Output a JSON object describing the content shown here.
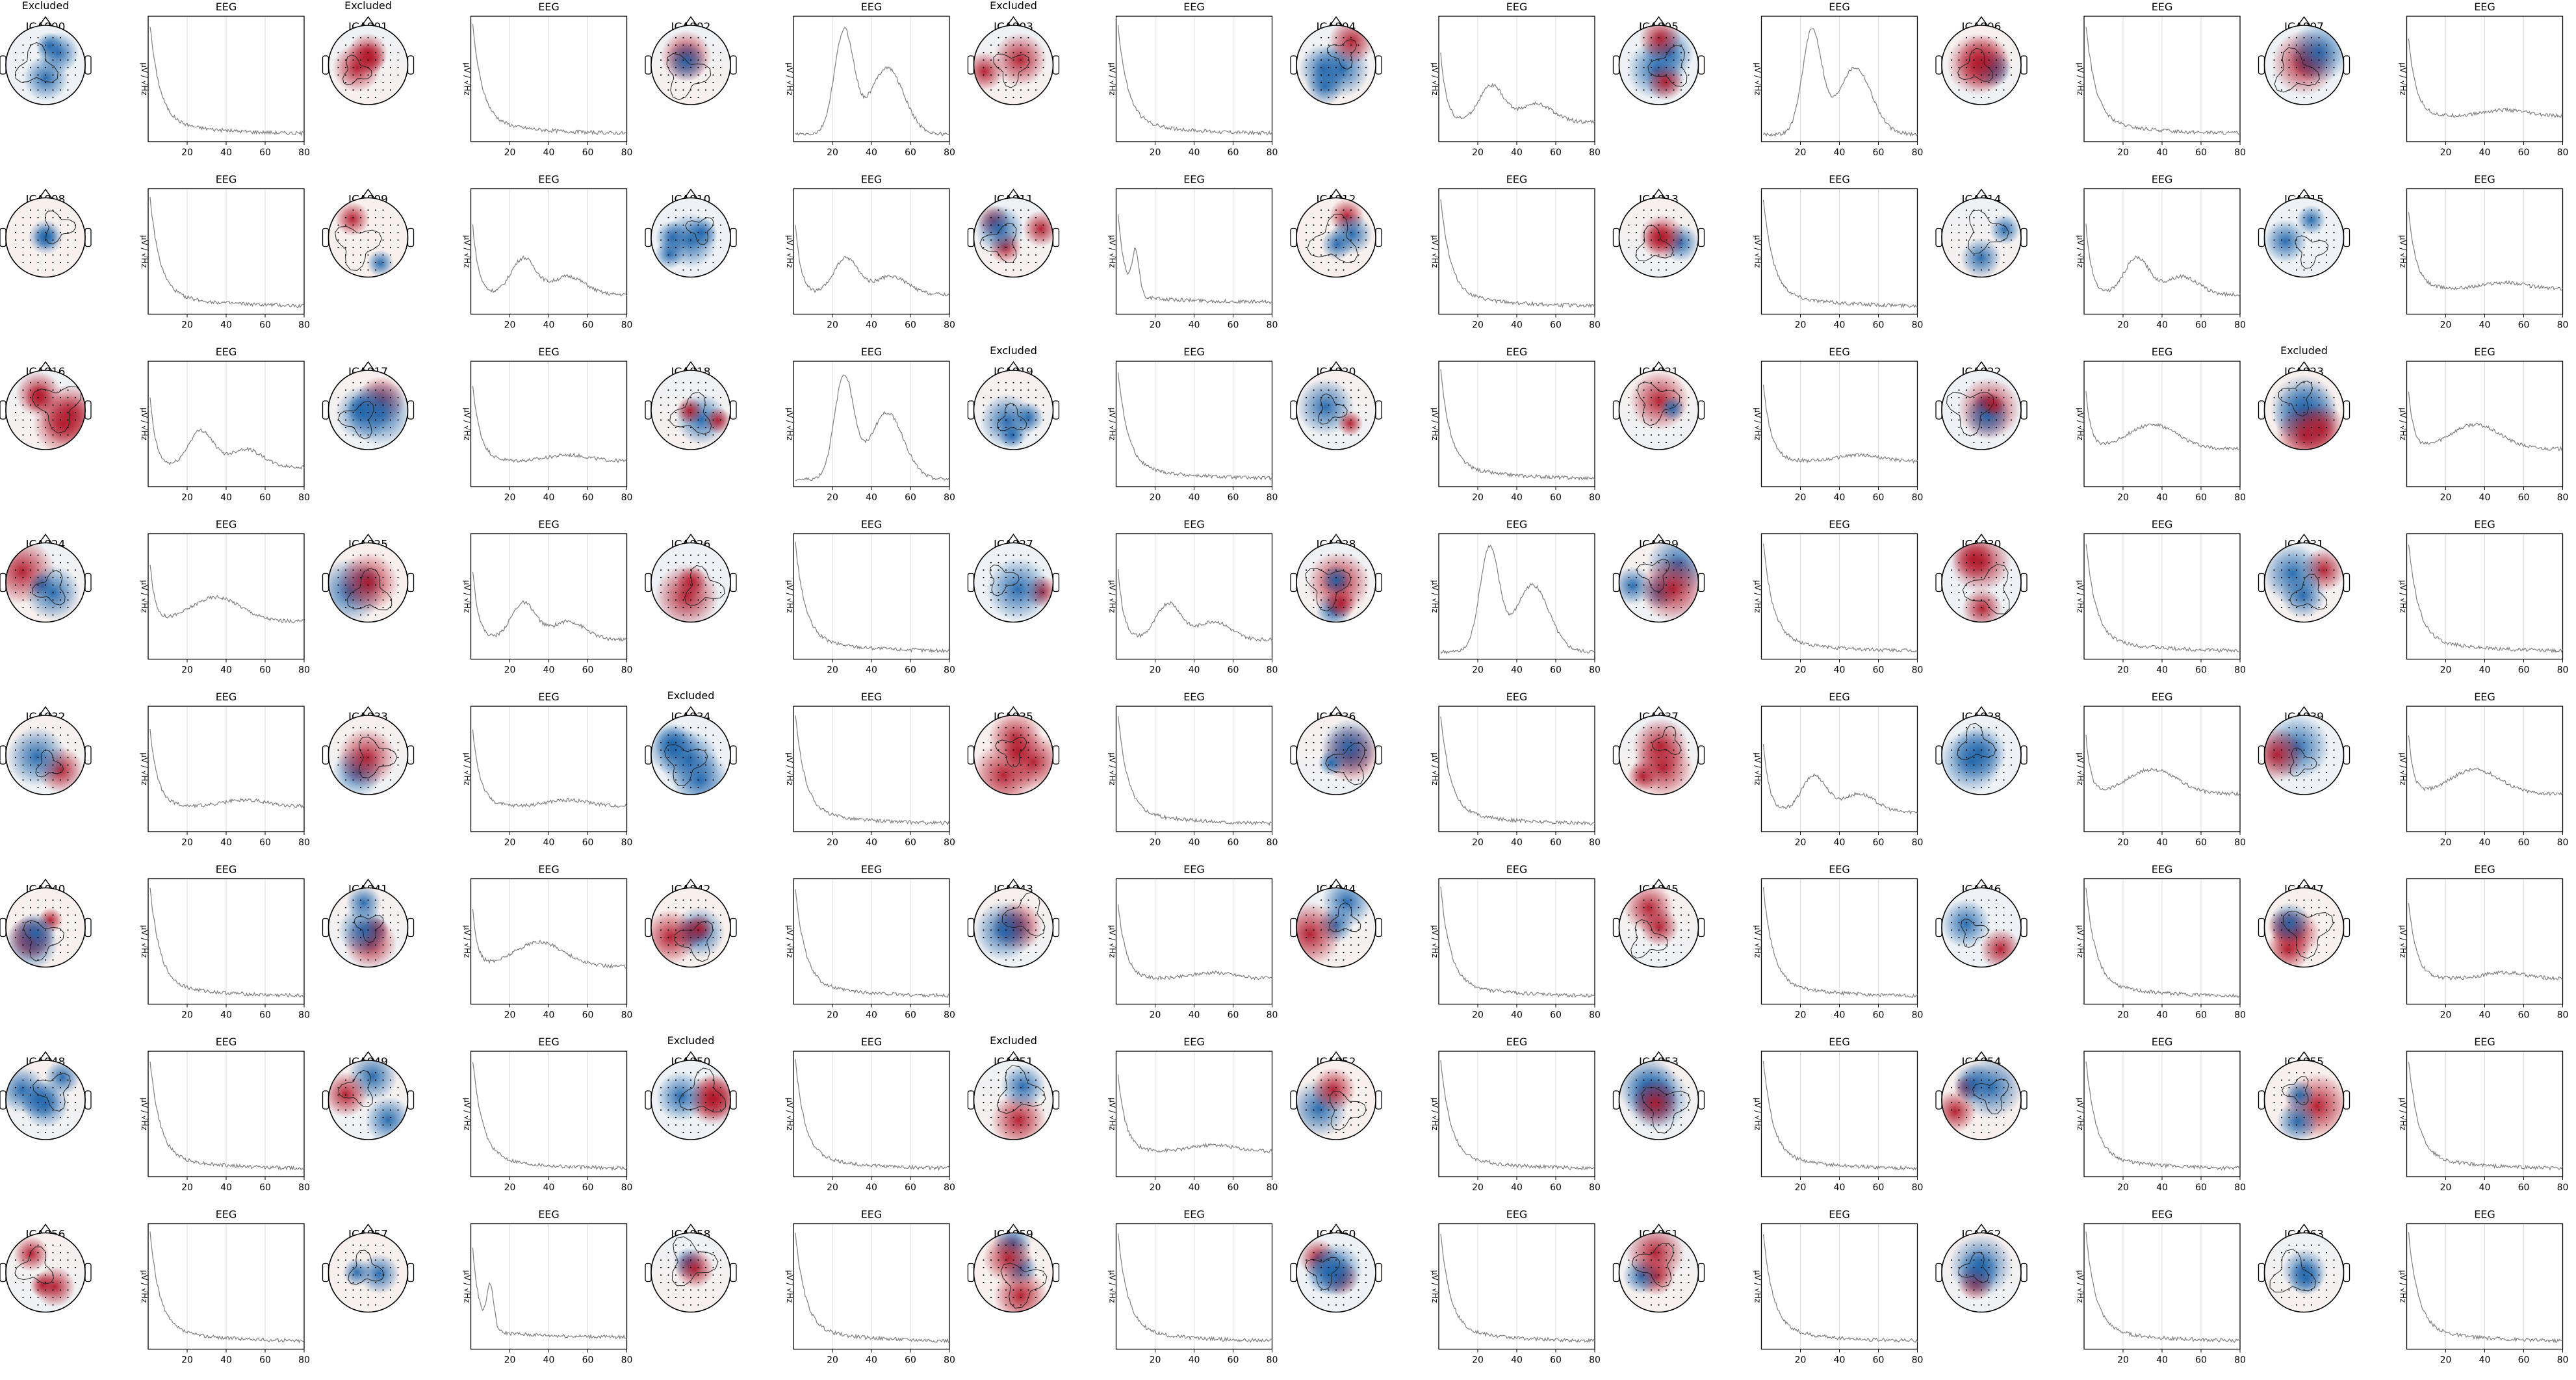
{
  "figure": {
    "excluded_label": "Excluded",
    "spectrum_title": "EEG",
    "ylabel": "µV / √Hz",
    "colors": {
      "positive": "#b2182b",
      "negative": "#2166ac",
      "neutral": "#f7f7f7",
      "line": "#7f7f7f"
    }
  },
  "chart_data": {
    "type": "line",
    "description_kind": "ICA component topographic maps with power spectra",
    "x_ticks": [
      20,
      40,
      60,
      80
    ],
    "xlim": [
      0,
      80
    ],
    "components": [
      {
        "name": "ICA000",
        "excluded": true,
        "spectrum": "decay"
      },
      {
        "name": "ICA001",
        "excluded": true,
        "spectrum": "decay"
      },
      {
        "name": "ICA002",
        "excluded": false,
        "spectrum": "peak25"
      },
      {
        "name": "ICA003",
        "excluded": true,
        "spectrum": "decay"
      },
      {
        "name": "ICA004",
        "excluded": false,
        "spectrum": "hump"
      },
      {
        "name": "ICA005",
        "excluded": false,
        "spectrum": "peak25"
      },
      {
        "name": "ICA006",
        "excluded": false,
        "spectrum": "decay"
      },
      {
        "name": "ICA007",
        "excluded": false,
        "spectrum": "flatdecay"
      },
      {
        "name": "ICA008",
        "excluded": false,
        "spectrum": "decay"
      },
      {
        "name": "ICA009",
        "excluded": false,
        "spectrum": "hump"
      },
      {
        "name": "ICA010",
        "excluded": false,
        "spectrum": "hump"
      },
      {
        "name": "ICA011",
        "excluded": false,
        "spectrum": "alpha"
      },
      {
        "name": "ICA012",
        "excluded": false,
        "spectrum": "decay"
      },
      {
        "name": "ICA013",
        "excluded": false,
        "spectrum": "decay"
      },
      {
        "name": "ICA014",
        "excluded": false,
        "spectrum": "hump"
      },
      {
        "name": "ICA015",
        "excluded": false,
        "spectrum": "flatdecay"
      },
      {
        "name": "ICA016",
        "excluded": false,
        "spectrum": "hump"
      },
      {
        "name": "ICA017",
        "excluded": false,
        "spectrum": "flatdecay"
      },
      {
        "name": "ICA018",
        "excluded": false,
        "spectrum": "peak25"
      },
      {
        "name": "ICA019",
        "excluded": true,
        "spectrum": "decay"
      },
      {
        "name": "ICA020",
        "excluded": false,
        "spectrum": "decay"
      },
      {
        "name": "ICA021",
        "excluded": false,
        "spectrum": "flatdecay"
      },
      {
        "name": "ICA022",
        "excluded": false,
        "spectrum": "flat"
      },
      {
        "name": "ICA023",
        "excluded": true,
        "spectrum": "flat"
      },
      {
        "name": "ICA024",
        "excluded": false,
        "spectrum": "flat"
      },
      {
        "name": "ICA025",
        "excluded": false,
        "spectrum": "hump"
      },
      {
        "name": "ICA026",
        "excluded": false,
        "spectrum": "decay"
      },
      {
        "name": "ICA027",
        "excluded": false,
        "spectrum": "hump"
      },
      {
        "name": "ICA028",
        "excluded": false,
        "spectrum": "peak25"
      },
      {
        "name": "ICA029",
        "excluded": false,
        "spectrum": "decay"
      },
      {
        "name": "ICA030",
        "excluded": false,
        "spectrum": "decay"
      },
      {
        "name": "ICA031",
        "excluded": false,
        "spectrum": "decay"
      },
      {
        "name": "ICA032",
        "excluded": false,
        "spectrum": "flatdecay"
      },
      {
        "name": "ICA033",
        "excluded": false,
        "spectrum": "flatdecay"
      },
      {
        "name": "ICA034",
        "excluded": true,
        "spectrum": "decay"
      },
      {
        "name": "ICA035",
        "excluded": false,
        "spectrum": "decay"
      },
      {
        "name": "ICA036",
        "excluded": false,
        "spectrum": "decay"
      },
      {
        "name": "ICA037",
        "excluded": false,
        "spectrum": "hump"
      },
      {
        "name": "ICA038",
        "excluded": false,
        "spectrum": "flat"
      },
      {
        "name": "ICA039",
        "excluded": false,
        "spectrum": "flat"
      },
      {
        "name": "ICA040",
        "excluded": false,
        "spectrum": "decay"
      },
      {
        "name": "ICA041",
        "excluded": false,
        "spectrum": "flat"
      },
      {
        "name": "ICA042",
        "excluded": false,
        "spectrum": "decay"
      },
      {
        "name": "ICA043",
        "excluded": false,
        "spectrum": "flatdecay"
      },
      {
        "name": "ICA044",
        "excluded": false,
        "spectrum": "decay"
      },
      {
        "name": "ICA045",
        "excluded": false,
        "spectrum": "decay"
      },
      {
        "name": "ICA046",
        "excluded": false,
        "spectrum": "decay"
      },
      {
        "name": "ICA047",
        "excluded": false,
        "spectrum": "flatdecay"
      },
      {
        "name": "ICA048",
        "excluded": false,
        "spectrum": "decay"
      },
      {
        "name": "ICA049",
        "excluded": false,
        "spectrum": "decay"
      },
      {
        "name": "ICA050",
        "excluded": true,
        "spectrum": "decay"
      },
      {
        "name": "ICA051",
        "excluded": true,
        "spectrum": "flatdecay"
      },
      {
        "name": "ICA052",
        "excluded": false,
        "spectrum": "decay"
      },
      {
        "name": "ICA053",
        "excluded": false,
        "spectrum": "decay"
      },
      {
        "name": "ICA054",
        "excluded": false,
        "spectrum": "decay"
      },
      {
        "name": "ICA055",
        "excluded": false,
        "spectrum": "decay"
      },
      {
        "name": "ICA056",
        "excluded": false,
        "spectrum": "decay"
      },
      {
        "name": "ICA057",
        "excluded": false,
        "spectrum": "alpha"
      },
      {
        "name": "ICA058",
        "excluded": false,
        "spectrum": "decay"
      },
      {
        "name": "ICA059",
        "excluded": false,
        "spectrum": "decay"
      },
      {
        "name": "ICA060",
        "excluded": false,
        "spectrum": "decay"
      },
      {
        "name": "ICA061",
        "excluded": false,
        "spectrum": "decay"
      },
      {
        "name": "ICA062",
        "excluded": false,
        "spectrum": "decay"
      },
      {
        "name": "ICA063",
        "excluded": false,
        "spectrum": "decay"
      }
    ]
  }
}
